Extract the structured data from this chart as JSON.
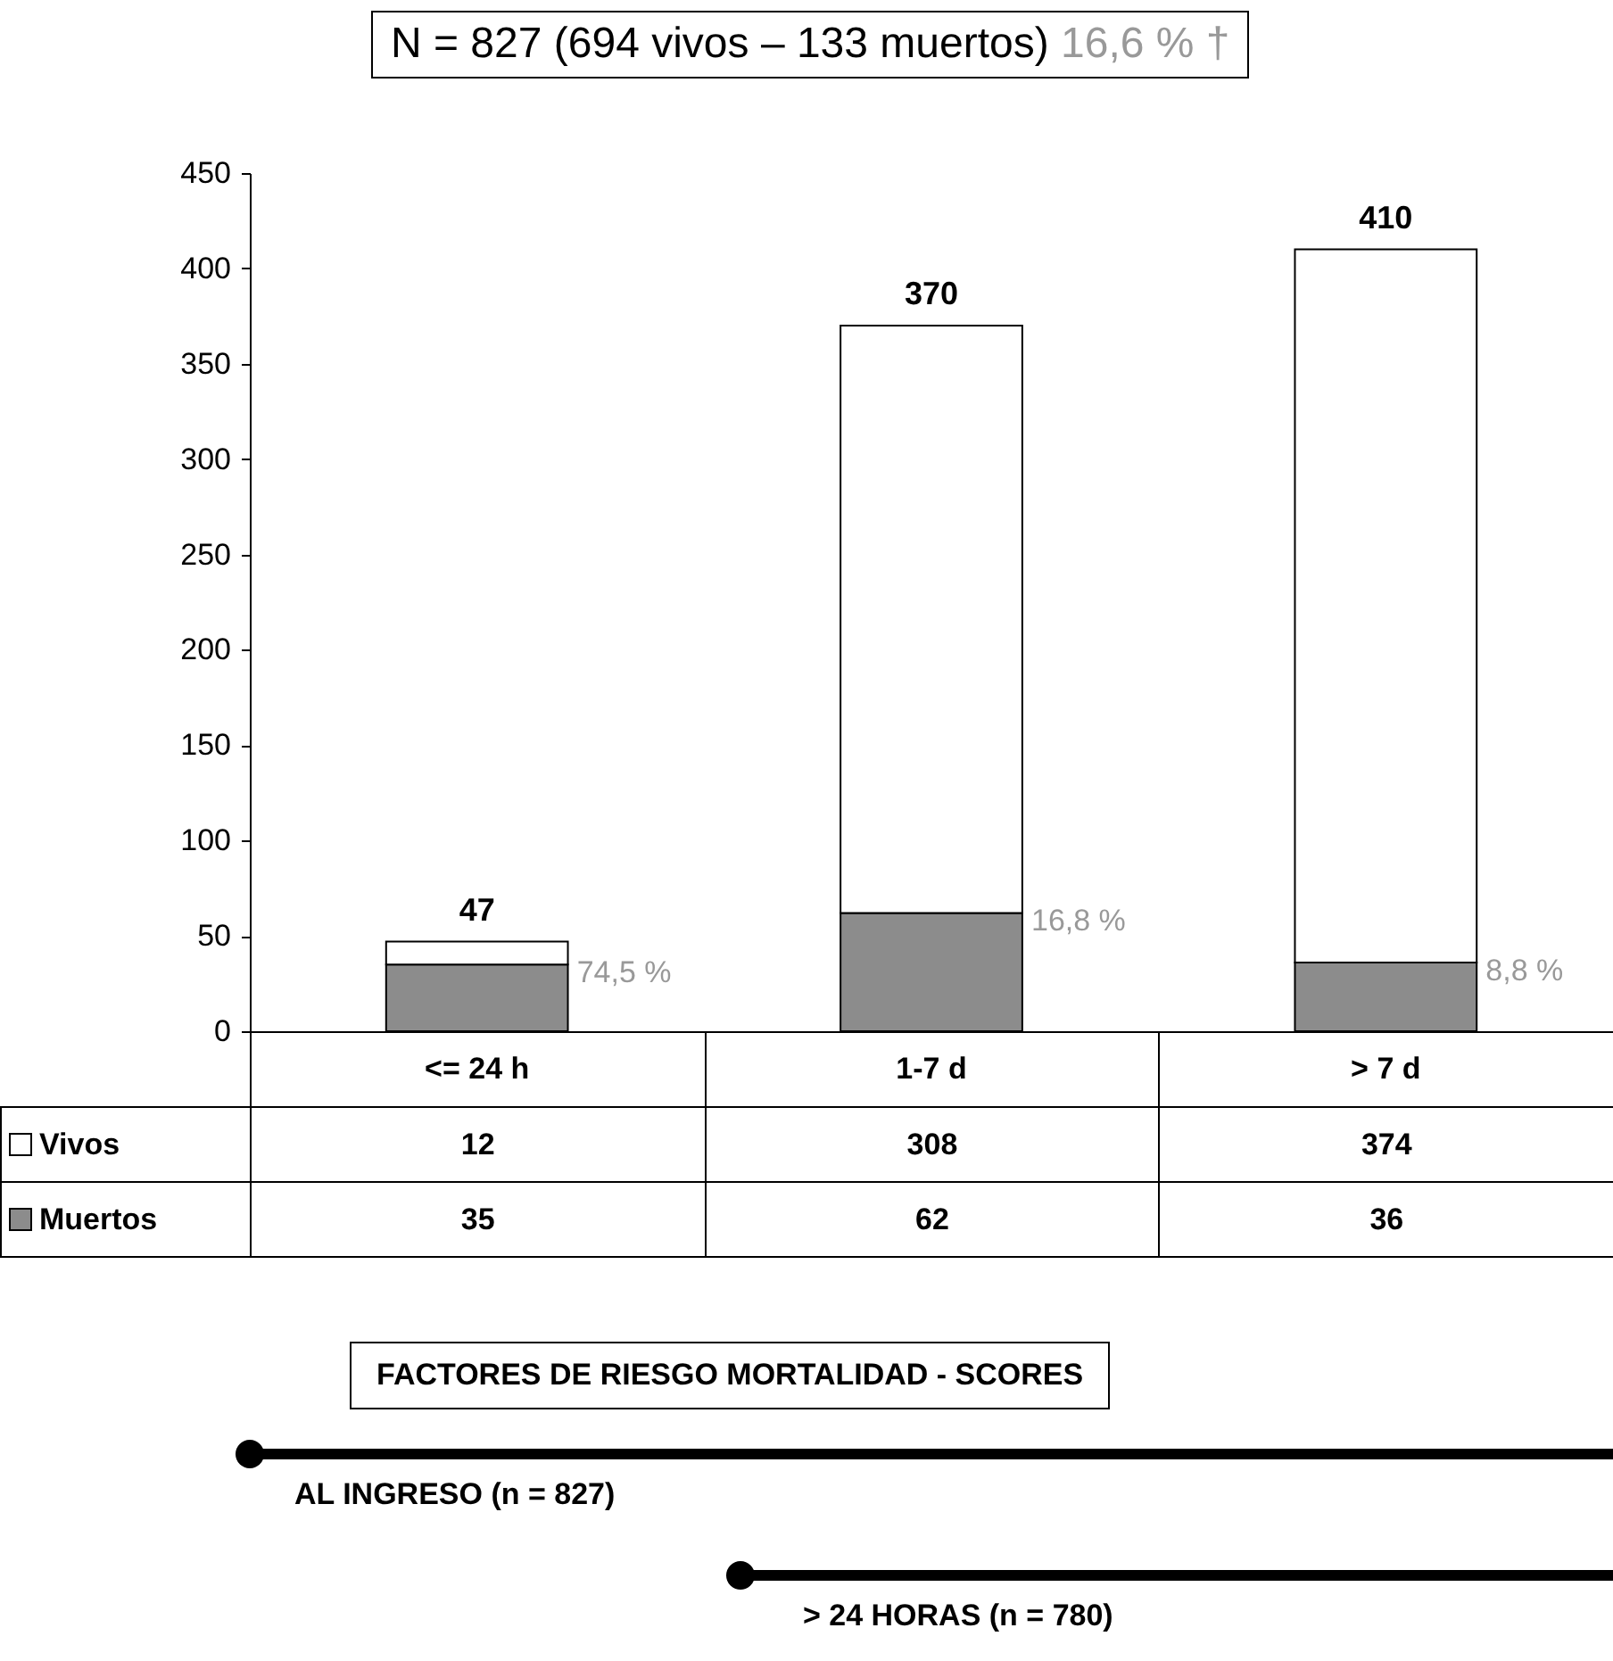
{
  "chart_data": {
    "type": "bar",
    "title": "N = 827 (694 vivos – 133 muertos)",
    "subtitle": "16,6 % †",
    "categories": [
      "<= 24 h",
      "1-7 d",
      "> 7 d"
    ],
    "series": [
      {
        "name": "Muertos",
        "color": "#8c8c8c",
        "values": [
          35,
          62,
          36
        ]
      },
      {
        "name": "Vivos",
        "color": "#ffffff",
        "values": [
          12,
          308,
          374
        ]
      }
    ],
    "stacked": true,
    "totals": [
      "47",
      "370",
      "410"
    ],
    "data_labels": true,
    "legend": "bottom left",
    "ylim": [
      0,
      450
    ],
    "yticks": [
      0,
      50,
      100,
      150,
      200,
      250,
      300,
      350,
      400,
      450
    ],
    "grid": false,
    "annotations": [
      "74,5 %",
      "16,8 %",
      "8,8 %",
      "FACTORES DE RIESGO MORTALIDAD - SCORES",
      "AL INGRESO (n = 827)",
      "> 24 HORAS (n = 780)"
    ]
  }
}
